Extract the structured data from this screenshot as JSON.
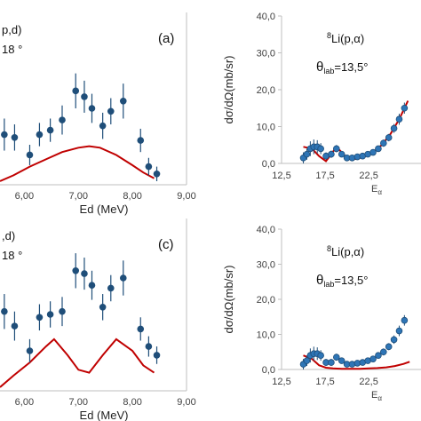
{
  "chart_data": [
    {
      "type": "scatter",
      "panel_letter": "(a)",
      "reaction_text": "p,d)",
      "angle_text": "18 °",
      "xlabel": "Ed (MeV)",
      "x_ticks": [
        "6,00",
        "7,00",
        "8,00",
        "9,00"
      ],
      "xlim": [
        5.55,
        9.0
      ],
      "ylim": [
        0,
        1
      ],
      "grid": false,
      "data_color": "#1f4e79",
      "curve_color": "#c00000",
      "points": [
        {
          "x": 5.63,
          "y": 0.32,
          "err": 0.11
        },
        {
          "x": 5.82,
          "y": 0.3,
          "err": 0.09
        },
        {
          "x": 6.1,
          "y": 0.18,
          "err": 0.07
        },
        {
          "x": 6.28,
          "y": 0.32,
          "err": 0.08
        },
        {
          "x": 6.48,
          "y": 0.35,
          "err": 0.08
        },
        {
          "x": 6.7,
          "y": 0.42,
          "err": 0.1
        },
        {
          "x": 6.95,
          "y": 0.62,
          "err": 0.12
        },
        {
          "x": 7.11,
          "y": 0.58,
          "err": 0.11
        },
        {
          "x": 7.25,
          "y": 0.5,
          "err": 0.1
        },
        {
          "x": 7.45,
          "y": 0.38,
          "err": 0.09
        },
        {
          "x": 7.6,
          "y": 0.48,
          "err": 0.09
        },
        {
          "x": 7.83,
          "y": 0.55,
          "err": 0.12
        },
        {
          "x": 8.15,
          "y": 0.28,
          "err": 0.08
        },
        {
          "x": 8.3,
          "y": 0.1,
          "err": 0.06
        },
        {
          "x": 8.45,
          "y": 0.05,
          "err": 0.05
        }
      ],
      "curve": {
        "x": [
          5.55,
          5.8,
          6.1,
          6.4,
          6.7,
          7.0,
          7.2,
          7.4,
          7.7,
          8.0,
          8.2,
          8.4
        ],
        "y": [
          0.0,
          0.04,
          0.1,
          0.15,
          0.2,
          0.23,
          0.24,
          0.23,
          0.18,
          0.11,
          0.06,
          0.02
        ]
      }
    },
    {
      "type": "scatter",
      "annotation_lines": [
        "8Li(p,α)",
        "θlab=13,5°"
      ],
      "ylabel": "dσ/dΩ(mb/sr)",
      "xlabel_visible": "Eα",
      "x_ticks": [
        "12,5",
        "17,5",
        "22,5"
      ],
      "y_ticks": [
        "0,0",
        "10,0",
        "20,0",
        "30,0",
        "40,0"
      ],
      "xlim": [
        12.5,
        28.5
      ],
      "ylim": [
        0,
        40
      ],
      "grid": false,
      "data_color": "#2e75b6",
      "curve_color": "#c00000",
      "points": [
        {
          "x": 15.0,
          "y": 1.5,
          "err": 1.5
        },
        {
          "x": 15.4,
          "y": 2.5,
          "err": 1.5
        },
        {
          "x": 15.8,
          "y": 4.0,
          "err": 2.0
        },
        {
          "x": 16.2,
          "y": 4.5,
          "err": 2.0
        },
        {
          "x": 16.6,
          "y": 4.5,
          "err": 1.8
        },
        {
          "x": 17.0,
          "y": 4.0,
          "err": 1.5
        },
        {
          "x": 17.6,
          "y": 2.0,
          "err": 1.0
        },
        {
          "x": 18.2,
          "y": 2.5,
          "err": 1.0
        },
        {
          "x": 18.8,
          "y": 4.0,
          "err": 1.0
        },
        {
          "x": 19.4,
          "y": 2.5,
          "err": 0.8
        },
        {
          "x": 20.0,
          "y": 1.5,
          "err": 0.6
        },
        {
          "x": 20.6,
          "y": 1.5,
          "err": 0.5
        },
        {
          "x": 21.2,
          "y": 1.8,
          "err": 0.5
        },
        {
          "x": 21.8,
          "y": 2.0,
          "err": 0.5
        },
        {
          "x": 22.4,
          "y": 2.5,
          "err": 0.6
        },
        {
          "x": 23.0,
          "y": 3.0,
          "err": 0.7
        },
        {
          "x": 23.6,
          "y": 4.0,
          "err": 0.8
        },
        {
          "x": 24.2,
          "y": 5.5,
          "err": 1.0
        },
        {
          "x": 24.8,
          "y": 7.0,
          "err": 1.0
        },
        {
          "x": 25.4,
          "y": 9.5,
          "err": 1.2
        },
        {
          "x": 26.0,
          "y": 12.0,
          "err": 1.5
        },
        {
          "x": 26.6,
          "y": 15.0,
          "err": 1.5
        }
      ],
      "curve": {
        "x": [
          15.0,
          16.0,
          16.8,
          17.6,
          18.2,
          18.8,
          19.4,
          20.0,
          21.0,
          22.0,
          23.0,
          24.0,
          25.0,
          26.0,
          27.0
        ],
        "y": [
          4.5,
          4.0,
          2.0,
          0.6,
          2.5,
          4.5,
          3.0,
          1.5,
          1.2,
          1.8,
          3.0,
          5.0,
          8.0,
          12.0,
          17.0
        ]
      }
    },
    {
      "type": "scatter",
      "panel_letter": "(c)",
      "reaction_text": ",d)",
      "angle_text": "18 °",
      "xlabel": "Ed (MeV)",
      "x_ticks": [
        "6,00",
        "7,00",
        "8,00",
        "9,00"
      ],
      "xlim": [
        5.55,
        9.0
      ],
      "ylim": [
        0,
        1
      ],
      "grid": false,
      "data_color": "#1f4e79",
      "curve_color": "#c00000",
      "points": [
        {
          "x": 5.63,
          "y": 0.52,
          "err": 0.12
        },
        {
          "x": 5.82,
          "y": 0.42,
          "err": 0.1
        },
        {
          "x": 6.1,
          "y": 0.25,
          "err": 0.08
        },
        {
          "x": 6.28,
          "y": 0.48,
          "err": 0.09
        },
        {
          "x": 6.48,
          "y": 0.5,
          "err": 0.09
        },
        {
          "x": 6.7,
          "y": 0.52,
          "err": 0.1
        },
        {
          "x": 6.95,
          "y": 0.8,
          "err": 0.12
        },
        {
          "x": 7.11,
          "y": 0.78,
          "err": 0.11
        },
        {
          "x": 7.25,
          "y": 0.7,
          "err": 0.1
        },
        {
          "x": 7.45,
          "y": 0.55,
          "err": 0.09
        },
        {
          "x": 7.6,
          "y": 0.68,
          "err": 0.09
        },
        {
          "x": 7.83,
          "y": 0.75,
          "err": 0.12
        },
        {
          "x": 8.15,
          "y": 0.4,
          "err": 0.08
        },
        {
          "x": 8.3,
          "y": 0.28,
          "err": 0.07
        },
        {
          "x": 8.45,
          "y": 0.22,
          "err": 0.06
        }
      ],
      "curve": {
        "x": [
          5.55,
          5.8,
          6.1,
          6.4,
          6.55,
          6.8,
          7.0,
          7.2,
          7.45,
          7.7,
          8.0,
          8.2,
          8.4
        ],
        "y": [
          0.0,
          0.08,
          0.17,
          0.28,
          0.33,
          0.22,
          0.12,
          0.1,
          0.22,
          0.33,
          0.25,
          0.15,
          0.1
        ]
      }
    },
    {
      "type": "scatter",
      "annotation_lines": [
        "8Li(p,α)",
        "θlab=13,5°"
      ],
      "ylabel": "dσ/dΩ(mb/sr)",
      "xlabel_visible": "Eα",
      "x_ticks": [
        "12,5",
        "17,5",
        "22,5"
      ],
      "y_ticks": [
        "0,0",
        "10,0",
        "20,0",
        "30,0",
        "40,0"
      ],
      "xlim": [
        12.5,
        28.5
      ],
      "ylim": [
        0,
        40
      ],
      "grid": false,
      "data_color": "#2e75b6",
      "curve_color": "#c00000",
      "points": [
        {
          "x": 15.0,
          "y": 1.5,
          "err": 1.5
        },
        {
          "x": 15.4,
          "y": 2.5,
          "err": 1.5
        },
        {
          "x": 15.8,
          "y": 4.0,
          "err": 2.0
        },
        {
          "x": 16.2,
          "y": 4.5,
          "err": 2.0
        },
        {
          "x": 16.6,
          "y": 4.5,
          "err": 1.8
        },
        {
          "x": 17.0,
          "y": 4.0,
          "err": 1.5
        },
        {
          "x": 17.6,
          "y": 2.0,
          "err": 1.0
        },
        {
          "x": 18.2,
          "y": 2.0,
          "err": 1.0
        },
        {
          "x": 18.8,
          "y": 3.5,
          "err": 1.0
        },
        {
          "x": 19.4,
          "y": 2.5,
          "err": 0.8
        },
        {
          "x": 20.0,
          "y": 1.5,
          "err": 0.6
        },
        {
          "x": 20.6,
          "y": 1.5,
          "err": 0.5
        },
        {
          "x": 21.2,
          "y": 1.8,
          "err": 0.5
        },
        {
          "x": 21.8,
          "y": 2.0,
          "err": 0.5
        },
        {
          "x": 22.4,
          "y": 2.5,
          "err": 0.6
        },
        {
          "x": 23.0,
          "y": 3.0,
          "err": 0.7
        },
        {
          "x": 23.6,
          "y": 4.0,
          "err": 0.8
        },
        {
          "x": 24.2,
          "y": 5.0,
          "err": 1.0
        },
        {
          "x": 24.8,
          "y": 6.5,
          "err": 1.0
        },
        {
          "x": 25.4,
          "y": 8.5,
          "err": 1.2
        },
        {
          "x": 26.0,
          "y": 11.0,
          "err": 1.5
        },
        {
          "x": 26.6,
          "y": 14.0,
          "err": 1.5
        }
      ],
      "curve": {
        "x": [
          15.0,
          16.0,
          16.8,
          17.6,
          18.4,
          19.4,
          20.5,
          21.5,
          22.5,
          23.5,
          24.5,
          25.5,
          26.5,
          27.2
        ],
        "y": [
          4.0,
          3.0,
          1.2,
          0.5,
          0.3,
          0.2,
          0.2,
          0.2,
          0.3,
          0.4,
          0.6,
          1.0,
          1.6,
          2.2
        ]
      }
    }
  ]
}
